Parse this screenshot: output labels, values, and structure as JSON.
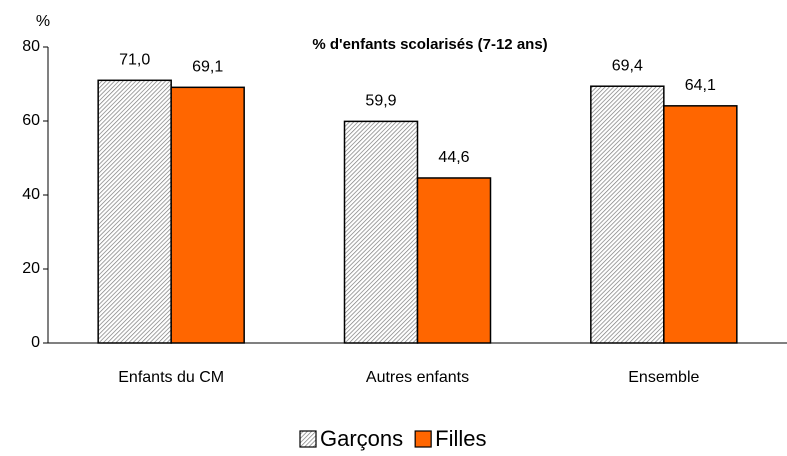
{
  "chart_data": {
    "type": "bar",
    "title": "% d'enfants scolarisés (7-12 ans)",
    "y_label": "%",
    "categories": [
      "Enfants du CM",
      "Autres enfants",
      "Ensemble"
    ],
    "series": [
      {
        "name": "Garçons",
        "color": "#c8c8c8",
        "hatch": true,
        "values": [
          71.0,
          59.9,
          69.4
        ],
        "value_labels": [
          "71,0",
          "59,9",
          "69,4"
        ]
      },
      {
        "name": "Filles",
        "color": "#ff6600",
        "hatch": false,
        "values": [
          69.1,
          44.6,
          64.1
        ],
        "value_labels": [
          "69,1",
          "44,6",
          "64,1"
        ]
      }
    ],
    "ylim": [
      0,
      80
    ],
    "yticks": [
      0,
      20,
      40,
      60,
      80
    ],
    "grid": false,
    "legend": "bottom"
  }
}
